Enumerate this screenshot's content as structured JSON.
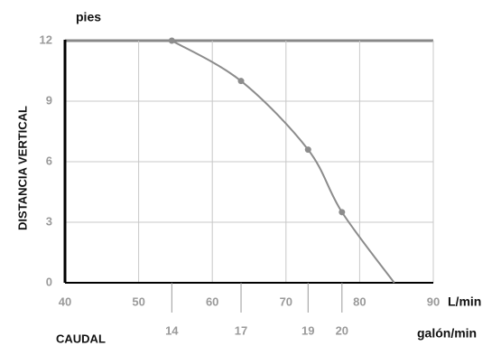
{
  "chart_data": {
    "type": "line",
    "y_unit": "pies",
    "ylabel": "DISTANCIA VERTICAL",
    "x_unit": "L/min",
    "x2_unit": "galón/min",
    "xlabel": "CAUDAL",
    "x": [
      54.5,
      63.9,
      73.0,
      77.6,
      84.7
    ],
    "series": [
      {
        "color": "#8c8c8c",
        "values": [
          12,
          10,
          6.6,
          3.5,
          0
        ]
      }
    ],
    "xlim": [
      40,
      90
    ],
    "xticks": [
      40,
      50,
      60,
      70,
      80,
      90
    ],
    "ylim": [
      0,
      12
    ],
    "yticks": [
      0,
      3,
      6,
      9,
      12
    ],
    "x2ticks": [
      {
        "value": 54.5,
        "label": "14"
      },
      {
        "value": 63.9,
        "label": "17"
      },
      {
        "value": 73.0,
        "label": "19"
      },
      {
        "value": 77.6,
        "label": "20"
      }
    ],
    "grid": true
  }
}
